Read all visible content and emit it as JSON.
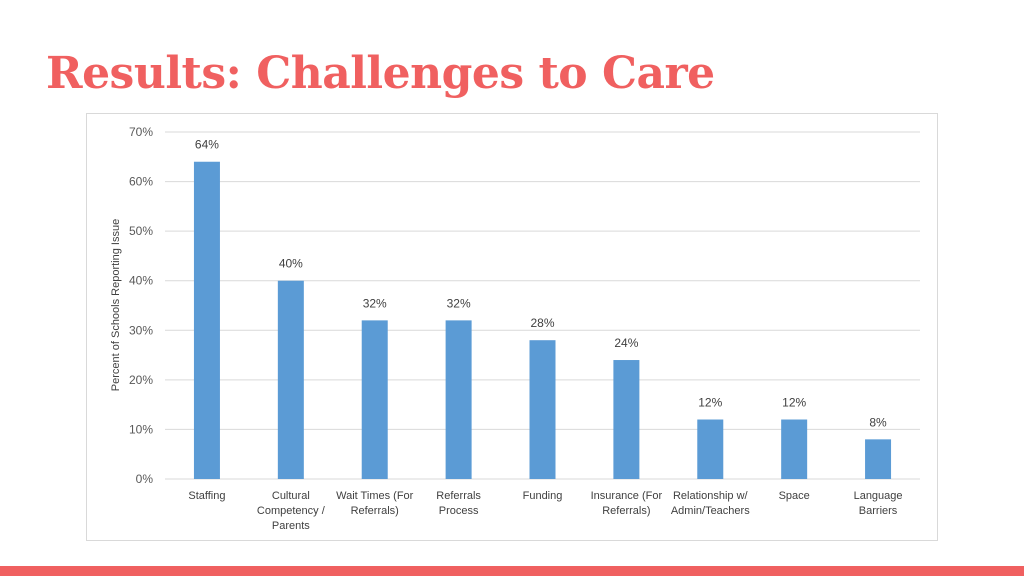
{
  "slide": {
    "title": "Results: Challenges to Care"
  },
  "colors": {
    "title": "#f06060",
    "bar": "#5b9bd5",
    "accent_bar": "#f06060",
    "gridline": "#d9d9d9"
  },
  "chart_data": {
    "type": "bar",
    "title": "",
    "xlabel": "",
    "ylabel": "Percent of Schools Reporting Issue",
    "ylim": [
      0,
      70
    ],
    "yticks": [
      "0%",
      "10%",
      "20%",
      "30%",
      "40%",
      "50%",
      "60%",
      "70%"
    ],
    "grid": true,
    "categories": [
      [
        "Staffing"
      ],
      [
        "Cultural",
        "Competency /",
        "Parents"
      ],
      [
        "Wait Times (For",
        "Referrals)"
      ],
      [
        "Referrals",
        "Process"
      ],
      [
        "Funding"
      ],
      [
        "Insurance (For",
        "Referrals)"
      ],
      [
        "Relationship w/",
        "Admin/Teachers"
      ],
      [
        "Space"
      ],
      [
        "Language",
        "Barriers"
      ]
    ],
    "values": [
      64,
      40,
      32,
      32,
      28,
      24,
      12,
      12,
      8
    ],
    "data_labels": [
      "64%",
      "40%",
      "32%",
      "32%",
      "28%",
      "24%",
      "12%",
      "12%",
      "8%"
    ]
  }
}
